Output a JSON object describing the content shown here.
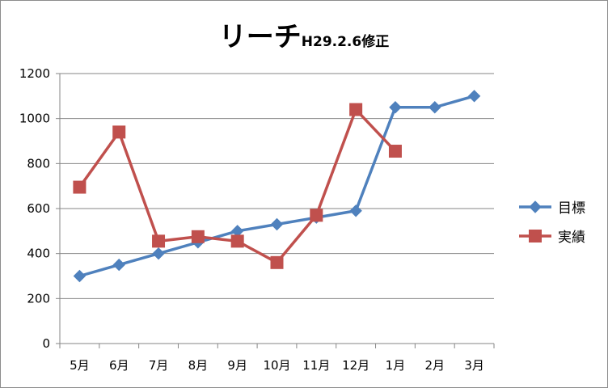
{
  "chart_data": {
    "type": "line",
    "title": "リーチ",
    "subtitle": "H29.2.6修正",
    "xlabel": "",
    "ylabel": "",
    "categories": [
      "5月",
      "6月",
      "7月",
      "8月",
      "9月",
      "10月",
      "11月",
      "12月",
      "1月",
      "2月",
      "3月"
    ],
    "ylim": [
      0,
      1200
    ],
    "yticks": [
      0,
      200,
      400,
      600,
      800,
      1000,
      1200
    ],
    "grid": true,
    "legend": "right",
    "series": [
      {
        "name": "目標",
        "color": "#4F81BD",
        "marker": "diamond",
        "values": [
          300,
          350,
          400,
          450,
          500,
          530,
          560,
          590,
          1050,
          1050,
          1100
        ]
      },
      {
        "name": "実績",
        "color": "#C0504D",
        "marker": "square",
        "values": [
          695,
          940,
          455,
          475,
          455,
          360,
          570,
          1040,
          855,
          null,
          null
        ]
      }
    ]
  }
}
